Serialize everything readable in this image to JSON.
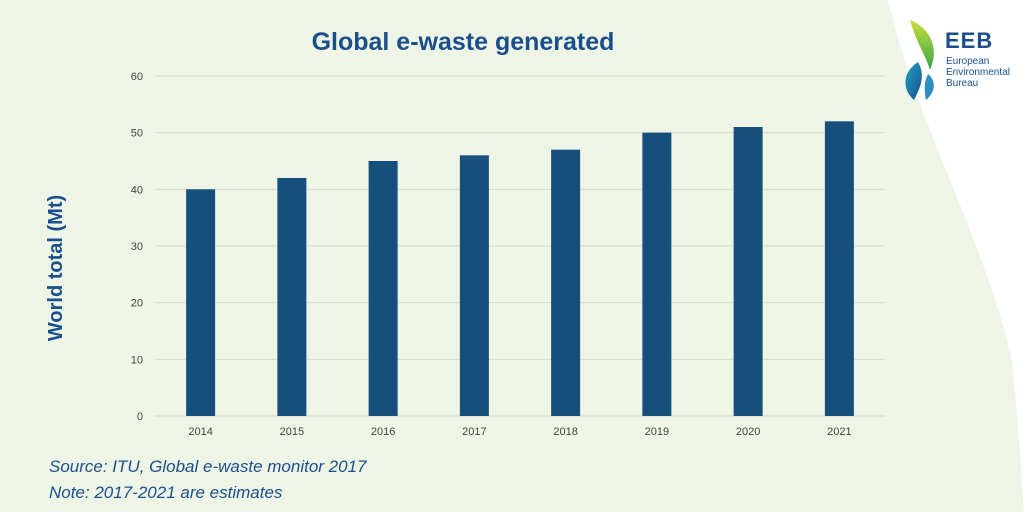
{
  "colors": {
    "bar": "#164f7c",
    "title": "#1a4f8b",
    "grid": "#d4dccd",
    "background": "#eef5e7",
    "panel": "#ffffff"
  },
  "chart_data": {
    "type": "bar",
    "title": "Global e-waste generated",
    "xlabel": "",
    "ylabel": "World total (Mt)",
    "categories": [
      "2014",
      "2015",
      "2016",
      "2017",
      "2018",
      "2019",
      "2020",
      "2021"
    ],
    "values": [
      40,
      42,
      45,
      46,
      47,
      50,
      51,
      52
    ],
    "ylim": [
      0,
      60
    ],
    "yticks": [
      0,
      10,
      20,
      30,
      40,
      50,
      60
    ],
    "grid": true
  },
  "notes": {
    "source": "Source: ITU, Global e-waste monitor 2017",
    "estimate": "Note: 2017-2021 are estimates"
  },
  "logo": {
    "acronym": "EEB",
    "line1": "European",
    "line2": "Environmental",
    "line3": "Bureau",
    "icon": "leaf-icon"
  }
}
